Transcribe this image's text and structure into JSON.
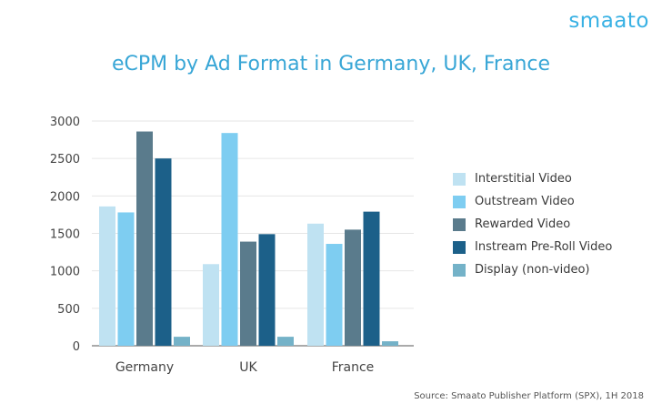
{
  "brand": "smaato",
  "source": "Source: Smaato Publisher Platform (SPX), 1H 2018",
  "chart_data": {
    "type": "bar",
    "title": "eCPM by Ad Format in Germany, UK, France",
    "xlabel": "",
    "ylabel": "",
    "ylim": [
      0,
      3000
    ],
    "yticks": [
      "0",
      "500",
      "1000",
      "1500",
      "2000",
      "2500",
      "3000"
    ],
    "grid": true,
    "legend_position": "right",
    "categories": [
      "Germany",
      "UK",
      "France"
    ],
    "series": [
      {
        "name": "Interstitial Video",
        "color": "#bfe2f2",
        "values": [
          1860,
          1090,
          1630
        ]
      },
      {
        "name": "Outstream Video",
        "color": "#7ecdf1",
        "values": [
          1780,
          2840,
          1360
        ]
      },
      {
        "name": "Rewarded Video",
        "color": "#5a7b8c",
        "values": [
          2860,
          1390,
          1550
        ]
      },
      {
        "name": "Instream Pre-Roll Video",
        "color": "#1c6089",
        "values": [
          2500,
          1490,
          1790
        ]
      },
      {
        "name": "Display (non-video)",
        "color": "#74b2c8",
        "values": [
          120,
          120,
          60
        ]
      }
    ]
  }
}
